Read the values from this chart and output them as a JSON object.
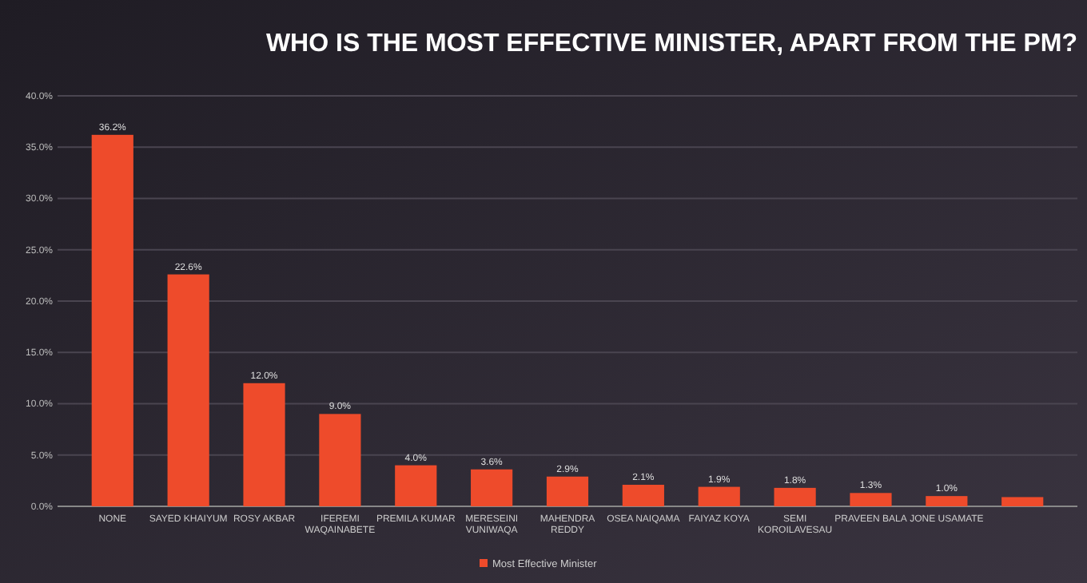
{
  "chart_data": {
    "type": "bar",
    "title": "WHO IS THE MOST EFFECTIVE MINISTER, APART FROM THE PM?",
    "categories": [
      "NONE",
      "SAYED KHAIYUM",
      "ROSY AKBAR",
      "IFEREMI WAQAINABETE",
      "PREMILA KUMAR",
      "MERESEINI VUNIWAQA",
      "MAHENDRA REDDY",
      "OSEA NAIQAMA",
      "FAIYAZ KOYA",
      "SEMI KOROILAVESAU",
      "PRAVEEN BALA",
      "JONE USAMATE",
      null
    ],
    "series": [
      {
        "name": "Most Effective Minister",
        "color": "#ee4b2b",
        "values": [
          36.2,
          22.6,
          12.0,
          9.0,
          4.0,
          3.6,
          2.9,
          2.1,
          1.9,
          1.8,
          1.3,
          1.0,
          0.9
        ],
        "value_labels": [
          "36.2%",
          "22.6%",
          "12.0%",
          "9.0%",
          "4.0%",
          "3.6%",
          "2.9%",
          "2.1%",
          "1.9%",
          "1.8%",
          "1.3%",
          "1.0%",
          null
        ]
      }
    ],
    "ylim": [
      0,
      40
    ],
    "yticks": [
      {
        "value": 0,
        "label": "0.0%"
      },
      {
        "value": 5,
        "label": "5.0%"
      },
      {
        "value": 10,
        "label": "10.0%"
      },
      {
        "value": 15,
        "label": "15.0%"
      },
      {
        "value": 20,
        "label": "20.0%"
      },
      {
        "value": 25,
        "label": "25.0%"
      },
      {
        "value": 30,
        "label": "30.0%"
      },
      {
        "value": 35,
        "label": "35.0%"
      },
      {
        "value": 40,
        "label": "40.0%"
      }
    ],
    "grid": "y",
    "legend": "bottom"
  }
}
